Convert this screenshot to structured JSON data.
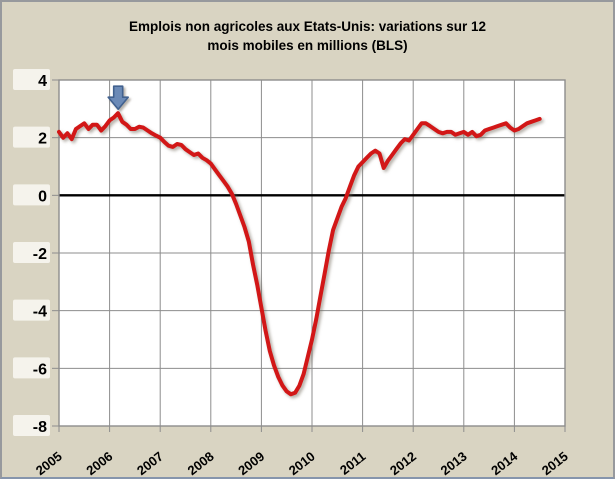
{
  "chart": {
    "title_line1": "Emplois non agricoles aux Etats-Unis: variations sur 12",
    "title_line2": "mois mobiles en millions (BLS)"
  },
  "colors": {
    "frame_background": "#d9d4c2",
    "frame_border": "#97999d",
    "plot_background": "#ffffff",
    "gridline": "#8d8d8d",
    "zero_line": "#000000",
    "series_line": "#d21717",
    "tick_label_bg": "#f5f3ec",
    "text": "#000000",
    "arrow_fill": "#6b8ab7",
    "arrow_stroke": "#41618f"
  },
  "chart_data": {
    "type": "line",
    "title": "Emplois non agricoles aux Etats-Unis: variations sur 12 mois mobiles en millions (BLS)",
    "xlabel": "",
    "ylabel": "",
    "frequency": "monthly",
    "start": {
      "year": 2005,
      "month": 1
    },
    "end": {
      "year": 2014,
      "month": 7
    },
    "xlim": [
      2005,
      2015
    ],
    "ylim": [
      -8,
      4
    ],
    "x_ticks": [
      2005,
      2006,
      2007,
      2008,
      2009,
      2010,
      2011,
      2012,
      2013,
      2014,
      2015
    ],
    "y_ticks": [
      4,
      2,
      0,
      -2,
      -4,
      -6,
      -8
    ],
    "grid": true,
    "zero_line": true,
    "legend_position": "none",
    "series": [
      {
        "name": "Variation sur 12 mois mobiles (millions)",
        "values": [
          2.2,
          2.0,
          2.15,
          1.95,
          2.3,
          2.4,
          2.5,
          2.3,
          2.45,
          2.45,
          2.25,
          2.4,
          2.6,
          2.7,
          2.85,
          2.55,
          2.45,
          2.3,
          2.3,
          2.38,
          2.35,
          2.25,
          2.15,
          2.07,
          2.0,
          1.85,
          1.72,
          1.68,
          1.78,
          1.75,
          1.6,
          1.5,
          1.4,
          1.45,
          1.3,
          1.22,
          1.1,
          0.9,
          0.7,
          0.5,
          0.3,
          0.05,
          -0.3,
          -0.7,
          -1.1,
          -1.6,
          -2.4,
          -3.1,
          -3.9,
          -4.7,
          -5.4,
          -5.9,
          -6.3,
          -6.6,
          -6.8,
          -6.9,
          -6.85,
          -6.6,
          -6.2,
          -5.6,
          -5.0,
          -4.3,
          -3.5,
          -2.7,
          -1.9,
          -1.2,
          -0.8,
          -0.4,
          -0.1,
          0.3,
          0.7,
          1.0,
          1.15,
          1.3,
          1.45,
          1.55,
          1.45,
          0.95,
          1.2,
          1.4,
          1.6,
          1.8,
          1.95,
          1.9,
          2.1,
          2.3,
          2.5,
          2.5,
          2.4,
          2.3,
          2.2,
          2.15,
          2.2,
          2.2,
          2.1,
          2.15,
          2.2,
          2.1,
          2.2,
          2.05,
          2.1,
          2.25,
          2.3,
          2.35,
          2.4,
          2.45,
          2.5,
          2.35,
          2.25,
          2.3,
          2.4,
          2.5,
          2.55,
          2.6,
          2.65
        ]
      }
    ],
    "annotations": [
      {
        "type": "down-arrow",
        "x_year": 2006.17,
        "points_to_value": 2.85
      }
    ]
  }
}
